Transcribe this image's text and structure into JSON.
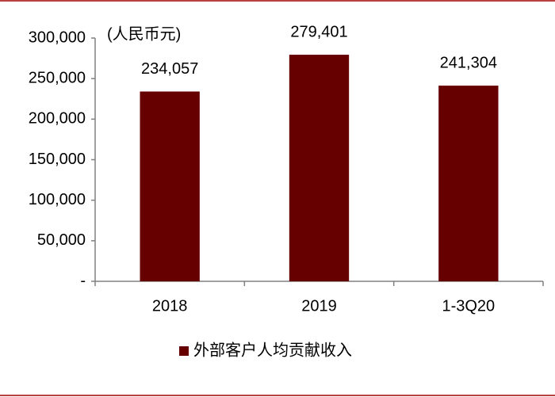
{
  "chart_data": {
    "type": "bar",
    "y_unit_label": "(人民币元)",
    "categories": [
      "2018",
      "2019",
      "1-3Q20"
    ],
    "series": [
      {
        "name": "外部客户人均贡献收入",
        "color": "#660000",
        "values": [
          234057,
          279401,
          241304
        ],
        "value_labels": [
          "234,057",
          "279,401",
          "241,304"
        ]
      }
    ],
    "ylim": [
      0,
      300000
    ],
    "yticks": [
      {
        "value": 0,
        "label": "-"
      },
      {
        "value": 50000,
        "label": "50,000"
      },
      {
        "value": 100000,
        "label": "100,000"
      },
      {
        "value": 150000,
        "label": "150,000"
      },
      {
        "value": 200000,
        "label": "200,000"
      },
      {
        "value": 250000,
        "label": "250,000"
      },
      {
        "value": 300000,
        "label": "300,000"
      }
    ],
    "grid": false,
    "legend": "bottom"
  }
}
